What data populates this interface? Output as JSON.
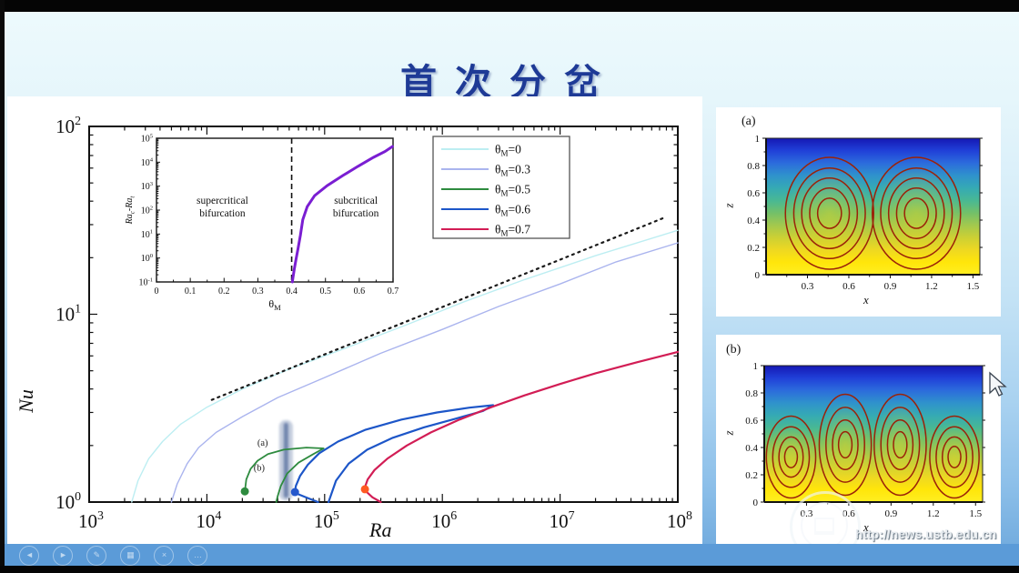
{
  "slide": {
    "title": "首次分岔",
    "title_color": "#1e3a96"
  },
  "watermark": {
    "url": "http://news.ustb.edu.cn",
    "logo": "ustb-seal"
  },
  "player_bar": {
    "icons": [
      {
        "name": "previous-slide",
        "glyph": "◄"
      },
      {
        "name": "next-slide",
        "glyph": "►"
      },
      {
        "name": "pen-tool",
        "glyph": "✎"
      },
      {
        "name": "all-slides",
        "glyph": "▦"
      },
      {
        "name": "zoom-tool",
        "glyph": "×"
      },
      {
        "name": "more-options",
        "glyph": "…"
      }
    ]
  },
  "chart_data": [
    {
      "type": "line",
      "name": "bifurcation-diagram",
      "xlabel": "Ra",
      "ylabel": "Nu",
      "xscale": "log",
      "yscale": "log",
      "xlim": [
        1000,
        100000000
      ],
      "ylim": [
        1,
        100
      ],
      "x_tick_exps": [
        3,
        4,
        5,
        6,
        7,
        8
      ],
      "y_tick_exps": [
        0,
        1,
        2
      ],
      "legend": {
        "position": "top-right",
        "sym": "θ",
        "sub": "M",
        "items": [
          {
            "value": "=0",
            "color": "#bdeef2"
          },
          {
            "value": "=0.3",
            "color": "#aab4ee"
          },
          {
            "value": "=0.5",
            "color": "#2e8b3f"
          },
          {
            "value": "=0.6",
            "color": "#1d56c8"
          },
          {
            "value": "=0.7",
            "color": "#d21d55"
          }
        ]
      },
      "series": [
        {
          "name": "thetaM=0",
          "color": "#bdeef2",
          "width": 1.4,
          "points": [
            [
              2300,
              1
            ],
            [
              2600,
              1.3
            ],
            [
              3200,
              1.7
            ],
            [
              4200,
              2.1
            ],
            [
              6000,
              2.6
            ],
            [
              10000,
              3.2
            ],
            [
              20000,
              4.0
            ],
            [
              50000,
              5.1
            ],
            [
              150000,
              6.6
            ],
            [
              500000,
              8.8
            ],
            [
              1500000,
              11.6
            ],
            [
              5000000,
              15.3
            ],
            [
              20000000,
              20.5
            ],
            [
              100000000,
              28
            ]
          ]
        },
        {
          "name": "thetaM=0.3",
          "color": "#aab4ee",
          "width": 1.4,
          "points": [
            [
              5000,
              1
            ],
            [
              5600,
              1.25
            ],
            [
              6800,
              1.6
            ],
            [
              8500,
              1.95
            ],
            [
              12000,
              2.35
            ],
            [
              20000,
              2.85
            ],
            [
              40000,
              3.6
            ],
            [
              100000,
              4.6
            ],
            [
              300000,
              6.2
            ],
            [
              1000000,
              8.3
            ],
            [
              3000000,
              11
            ],
            [
              10000000,
              14.5
            ],
            [
              30000000,
              19
            ],
            [
              100000000,
              24
            ]
          ]
        },
        {
          "name": "scaling-guide",
          "color": "#1a1a1a",
          "width": 2.2,
          "dash": "2 5",
          "points": [
            [
              11000,
              3.5
            ],
            [
              80000000,
              33
            ]
          ]
        },
        {
          "name": "thetaM=0.5",
          "color": "#2e8b3f",
          "width": 1.8,
          "points": [
            [
              21000,
              1.14
            ],
            [
              21600,
              1.32
            ],
            [
              23500,
              1.5
            ],
            [
              27000,
              1.66
            ],
            [
              33000,
              1.8
            ],
            [
              45000,
              1.9
            ],
            [
              70000,
              1.95
            ],
            [
              98000,
              1.93
            ],
            [
              80000,
              1.8
            ],
            [
              60000,
              1.62
            ],
            [
              48000,
              1.42
            ],
            [
              42500,
              1.22
            ],
            [
              40000,
              1.08
            ],
            [
              38800,
              1.0
            ]
          ]
        },
        {
          "name": "thetaM=0.6",
          "color": "#1d56c8",
          "width": 2.2,
          "points": [
            [
              88000,
              1.0
            ],
            [
              72000,
              1.05
            ],
            [
              60000,
              1.1
            ],
            [
              56000,
              1.13
            ],
            [
              57000,
              1.22
            ],
            [
              62000,
              1.38
            ],
            [
              72000,
              1.58
            ],
            [
              90000,
              1.82
            ],
            [
              130000,
              2.1
            ],
            [
              220000,
              2.42
            ],
            [
              450000,
              2.75
            ],
            [
              900000,
              3.0
            ],
            [
              1700000,
              3.18
            ],
            [
              2700000,
              3.28
            ],
            [
              2200000,
              3.05
            ],
            [
              1300000,
              2.78
            ],
            [
              700000,
              2.5
            ],
            [
              380000,
              2.2
            ],
            [
              230000,
              1.9
            ],
            [
              160000,
              1.6
            ],
            [
              125000,
              1.3
            ],
            [
              108000,
              1.0
            ]
          ]
        },
        {
          "name": "thetaM=0.7",
          "color": "#d21d55",
          "width": 2.2,
          "points": [
            [
              300000,
              1.0
            ],
            [
              255000,
              1.06
            ],
            [
              228000,
              1.13
            ],
            [
              220000,
              1.2
            ],
            [
              232000,
              1.32
            ],
            [
              265000,
              1.48
            ],
            [
              340000,
              1.7
            ],
            [
              500000,
              2.0
            ],
            [
              800000,
              2.35
            ],
            [
              1400000,
              2.75
            ],
            [
              2600000,
              3.2
            ],
            [
              5000000,
              3.7
            ],
            [
              10000000,
              4.25
            ],
            [
              20000000,
              4.85
            ],
            [
              45000000,
              5.55
            ],
            [
              100000000,
              6.3
            ]
          ]
        }
      ],
      "markers": [
        {
          "x": 21000,
          "y": 1.14,
          "color": "#2e8b3f"
        },
        {
          "x": 56000,
          "y": 1.13,
          "color": "#2457cc"
        },
        {
          "x": 220000,
          "y": 1.17,
          "color": "#ff5a22"
        }
      ],
      "annotations": [
        {
          "text": "(a)",
          "x": 33000,
          "y": 2.0
        },
        {
          "text": "(b)",
          "x": 31000,
          "y": 1.47
        }
      ],
      "highlight_band": {
        "x": 47000,
        "nu_from": 1.02,
        "nu_to": 2.73,
        "fill": "rgba(90,115,160,0.35)",
        "core": "rgba(45,75,135,0.55)"
      }
    },
    {
      "type": "line",
      "name": "critical-gap-inset",
      "xlabel_sym": "θ",
      "xlabel_sub": "M",
      "ylabel_parts": [
        [
          "Ra",
          "c"
        ],
        [
          "-Ra",
          "t"
        ]
      ],
      "xlim": [
        0,
        0.7
      ],
      "ylim": [
        0.1,
        100000
      ],
      "yscale": "log",
      "x_ticks": [
        0,
        0.1,
        0.2,
        0.3,
        0.4,
        0.5,
        0.6,
        0.7
      ],
      "y_tick_exps": [
        -1,
        0,
        1,
        2,
        3,
        4,
        5
      ],
      "dashed_line_x": 0.4,
      "regions": [
        {
          "lines": [
            "supercritical",
            "bifurcation"
          ],
          "x": 0.195
        },
        {
          "lines": [
            "subcritical",
            "bifurcation"
          ],
          "x": 0.59
        }
      ],
      "series": [
        {
          "name": "critical-curve",
          "color": "#7a1ed2",
          "width": 3,
          "points": [
            [
              0.402,
              0.1
            ],
            [
              0.404,
              0.16
            ],
            [
              0.408,
              0.35
            ],
            [
              0.413,
              0.9
            ],
            [
              0.419,
              2.5
            ],
            [
              0.426,
              9
            ],
            [
              0.433,
              40
            ],
            [
              0.446,
              140
            ],
            [
              0.468,
              400
            ],
            [
              0.505,
              1050
            ],
            [
              0.552,
              2800
            ],
            [
              0.596,
              6700
            ],
            [
              0.642,
              16000
            ],
            [
              0.676,
              28000
            ],
            [
              0.698,
              45000
            ]
          ]
        }
      ]
    },
    {
      "type": "contour",
      "name": "streamlines-two-cells",
      "label": "(a)",
      "xlabel": "x",
      "ylabel": "z",
      "xlim": [
        0,
        1.55
      ],
      "ylim": [
        0,
        1
      ],
      "x_ticks": [
        0.3,
        0.6,
        0.9,
        1.2,
        1.5
      ],
      "y_ticks": [
        0,
        0.2,
        0.4,
        0.6,
        0.8,
        1
      ],
      "colormap": [
        "#1518b4",
        "#2040d8",
        "#2c6cdc",
        "#2f92cc",
        "#35aab4",
        "#48b894",
        "#72c06a",
        "#a2c84e",
        "#ccd034",
        "#eed822",
        "#ffe60a",
        "#ffee22"
      ],
      "blob_color": "rgba(222,214,40,0.5)",
      "contour_color": "#9b2209",
      "cells": [
        {
          "cx": 0.46,
          "cz": 0.45,
          "rx": 0.32,
          "rz": 0.41
        },
        {
          "cx": 1.09,
          "cz": 0.45,
          "rx": 0.32,
          "rz": 0.41
        }
      ],
      "ring_scales": [
        1,
        0.81,
        0.63,
        0.45,
        0.27
      ]
    },
    {
      "type": "contour",
      "name": "streamlines-four-cells",
      "label": "(b)",
      "xlabel": "x",
      "ylabel": "z",
      "xlim": [
        0,
        1.55
      ],
      "ylim": [
        0,
        1
      ],
      "x_ticks": [
        0.3,
        0.6,
        0.9,
        1.2,
        1.5
      ],
      "y_ticks": [
        0,
        0.2,
        0.4,
        0.6,
        0.8,
        1
      ],
      "colormap": [
        "#1518b4",
        "#2040d8",
        "#2c6cdc",
        "#2f92cc",
        "#35aab4",
        "#48b894",
        "#72c06a",
        "#a2c84e",
        "#ccd034",
        "#eed822",
        "#ffe60a",
        "#ffee22"
      ],
      "blob_color": "rgba(222,214,40,0.5)",
      "contour_color": "#9b2209",
      "cells": [
        {
          "cx": 0.19,
          "cz": 0.33,
          "rx": 0.175,
          "rz": 0.3
        },
        {
          "cx": 0.575,
          "cz": 0.42,
          "rx": 0.185,
          "rz": 0.37
        },
        {
          "cx": 0.965,
          "cz": 0.42,
          "rx": 0.185,
          "rz": 0.37
        },
        {
          "cx": 1.35,
          "cz": 0.33,
          "rx": 0.175,
          "rz": 0.3
        }
      ],
      "ring_scales": [
        1,
        0.74,
        0.49,
        0.26
      ]
    }
  ]
}
